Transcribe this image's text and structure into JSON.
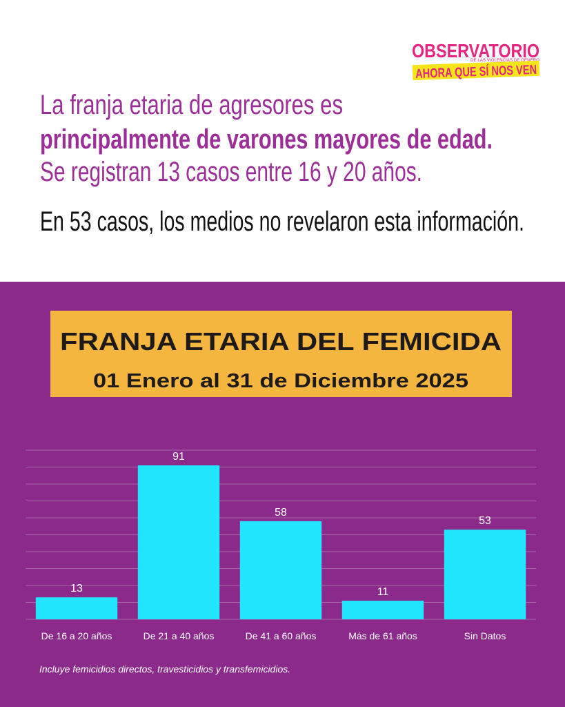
{
  "header": {
    "logo": {
      "name": "OBSERVATORIO",
      "sub": "DE LAS VIOLENCIAS DE GÉNERO",
      "slogan": "AHORA QUE SÍ NOS VEN"
    },
    "lines": [
      "La franja etaria de agresores es",
      "principalmente de varones mayores de edad.",
      "Se registran 13 casos entre 16 y 20 años."
    ],
    "note": "En 53 casos, los medios no revelaron esta información."
  },
  "chart_data": {
    "type": "bar",
    "title": "FRANJA ETARIA DEL FEMICIDA",
    "subtitle": "01 Enero al 31 de Diciembre 2025",
    "categories": [
      "De 16 a 20 años",
      "De 21 a 40 años",
      "De 41 a 60 años",
      "Más de 61 años",
      "Sin Datos"
    ],
    "values": [
      13,
      91,
      58,
      11,
      53
    ],
    "color": "#22e5ff",
    "ylim": [
      0,
      100
    ],
    "yticks": [
      0,
      10,
      20,
      30,
      40,
      50,
      60,
      70,
      80,
      90,
      100
    ],
    "grid": true
  },
  "footnote": "Incluye femicidios directos, travesticidios y transfemicidios."
}
